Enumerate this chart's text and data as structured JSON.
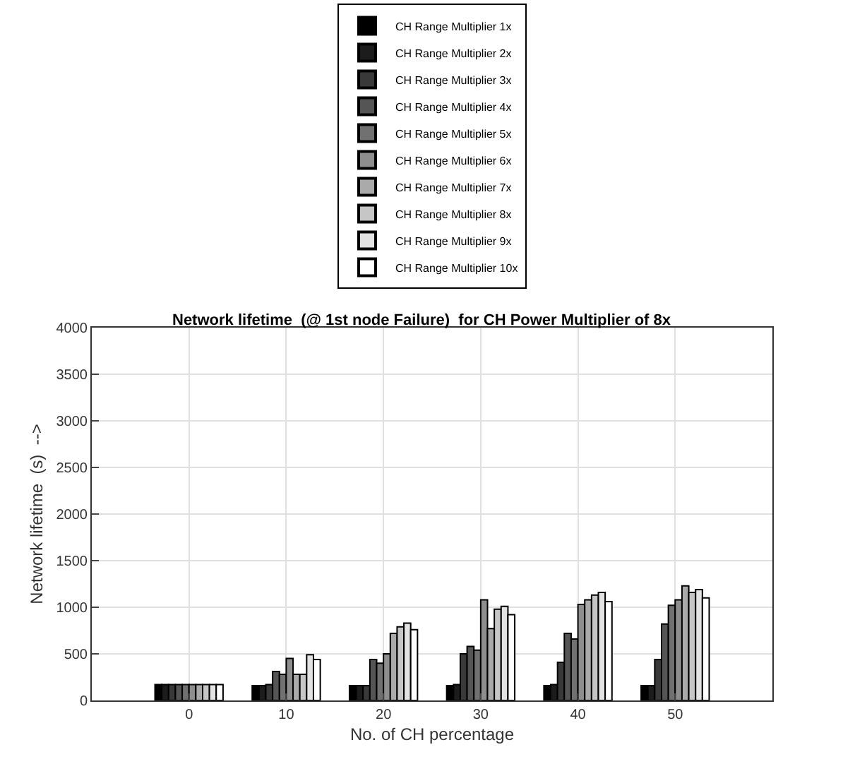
{
  "chart_data": {
    "type": "bar",
    "title": "Network lifetime  (@ 1st node Failure)  for CH Power Multiplier of 8x",
    "xlabel": "No. of CH percentage",
    "ylabel": "Network lifetime  (s)  -->",
    "x": [
      0,
      10,
      20,
      30,
      40,
      50
    ],
    "xlim": [
      -10,
      60
    ],
    "xticks": [
      0,
      10,
      20,
      30,
      40,
      50
    ],
    "ylim": [
      0,
      4000
    ],
    "yticks": [
      0,
      500,
      1000,
      1500,
      2000,
      2500,
      3000,
      3500,
      4000
    ],
    "grid": true,
    "legend": "top",
    "series": [
      {
        "name": "CH Range Multiplier 1x",
        "color": "#000000",
        "values": [
          170,
          160,
          160,
          160,
          160,
          160
        ]
      },
      {
        "name": "CH Range Multiplier 2x",
        "color": "#1c1c1c",
        "values": [
          170,
          160,
          160,
          170,
          170,
          160
        ]
      },
      {
        "name": "CH Range Multiplier 3x",
        "color": "#393939",
        "values": [
          170,
          170,
          160,
          500,
          410,
          440
        ]
      },
      {
        "name": "CH Range Multiplier 4x",
        "color": "#555555",
        "values": [
          170,
          310,
          440,
          580,
          720,
          820
        ]
      },
      {
        "name": "CH Range Multiplier 5x",
        "color": "#717171",
        "values": [
          170,
          280,
          400,
          540,
          660,
          1020
        ]
      },
      {
        "name": "CH Range Multiplier 6x",
        "color": "#8e8e8e",
        "values": [
          170,
          450,
          500,
          1080,
          1030,
          1080
        ]
      },
      {
        "name": "CH Range Multiplier 7x",
        "color": "#aaaaaa",
        "values": [
          170,
          280,
          720,
          770,
          1080,
          1230
        ]
      },
      {
        "name": "CH Range Multiplier 8x",
        "color": "#c6c6c6",
        "values": [
          170,
          280,
          790,
          980,
          1130,
          1160
        ]
      },
      {
        "name": "CH Range Multiplier 9x",
        "color": "#e3e3e3",
        "values": [
          170,
          490,
          830,
          1010,
          1160,
          1190
        ]
      },
      {
        "name": "CH Range Multiplier 10x",
        "color": "#ffffff",
        "values": [
          170,
          440,
          760,
          920,
          1060,
          1100
        ]
      }
    ]
  }
}
